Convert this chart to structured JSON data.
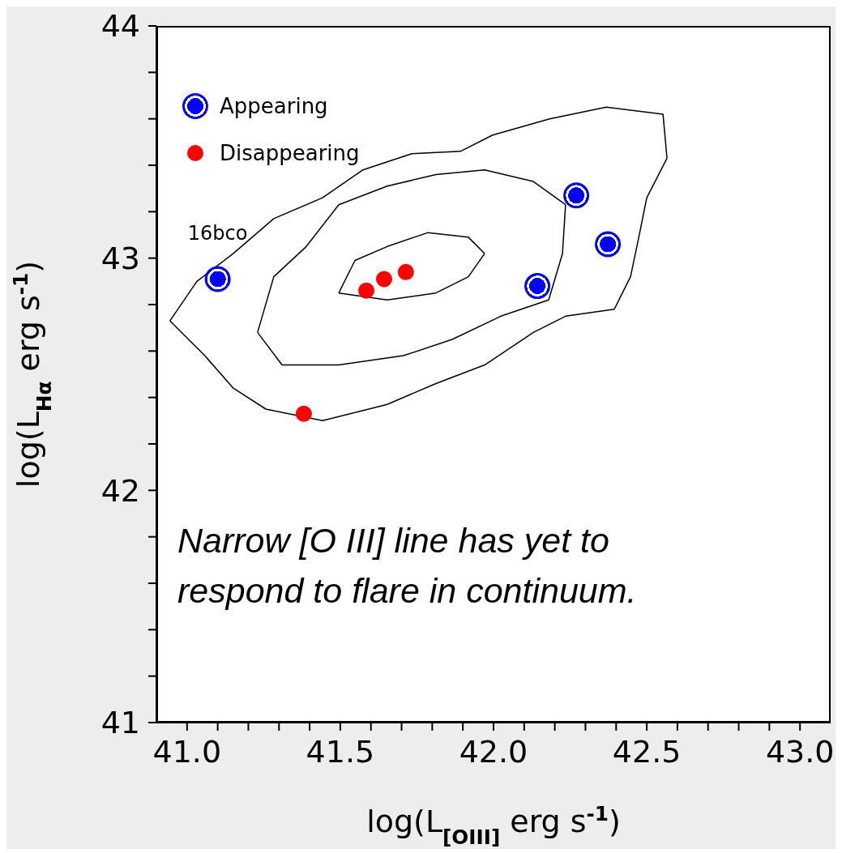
{
  "chart_data": {
    "type": "scatter",
    "xlabel": "log(L$_{[OIII]}$ erg s$^{-1}$)",
    "ylabel": "log(L$_{Hα}$ erg s$^{-1}$)",
    "xlim": [
      40.9,
      43.1
    ],
    "ylim": [
      41,
      44
    ],
    "xticks": [
      {
        "value": 41,
        "label": "41.0"
      },
      {
        "value": 41.1,
        "label": null
      },
      {
        "value": 41.2,
        "label": null
      },
      {
        "value": 41.3,
        "label": null
      },
      {
        "value": 41.4,
        "label": null
      },
      {
        "value": 41.5,
        "label": "41.5"
      },
      {
        "value": 41.6,
        "label": null
      },
      {
        "value": 41.7,
        "label": null
      },
      {
        "value": 41.8,
        "label": null
      },
      {
        "value": 41.9,
        "label": null
      },
      {
        "value": 42,
        "label": "42.0"
      },
      {
        "value": 42.1,
        "label": null
      },
      {
        "value": 42.2,
        "label": null
      },
      {
        "value": 42.3,
        "label": null
      },
      {
        "value": 42.4,
        "label": null
      },
      {
        "value": 42.5,
        "label": "42.5"
      },
      {
        "value": 42.6,
        "label": null
      },
      {
        "value": 42.7,
        "label": null
      },
      {
        "value": 42.8,
        "label": null
      },
      {
        "value": 42.9,
        "label": null
      },
      {
        "value": 43,
        "label": "43.0"
      }
    ],
    "yticks": [
      41,
      {
        "value": 41.2,
        "label": null
      },
      {
        "value": 41.4,
        "label": null
      },
      {
        "value": 41.6,
        "label": null
      },
      {
        "value": 41.8,
        "label": null
      },
      42,
      {
        "value": 42.2,
        "label": null
      },
      {
        "value": 42.4,
        "label": null
      },
      {
        "value": 42.6,
        "label": null
      },
      {
        "value": 42.8,
        "label": null
      },
      43,
      {
        "value": 43.2,
        "label": null
      },
      {
        "value": 43.4,
        "label": null
      },
      {
        "value": 43.6,
        "label": null
      },
      {
        "value": 43.8,
        "label": null
      },
      44
    ],
    "grid": false,
    "legend": "top left",
    "marker": "circle",
    "annotations": [
      {
        "text": "16bco",
        "x": 41.1,
        "y": 42.91
      },
      "Narrow [O III] line has yet to respond to flare in continuum."
    ],
    "series": [
      {
        "type": "line",
        "color": "#000000",
        "marker": "none",
        "line_style": "solid",
        "x": [
          40.944,
          41.032,
          41.151,
          41.283,
          41.442,
          41.574,
          41.733,
          41.892,
          41.997,
          42.183,
          42.368,
          42.553,
          42.566
        ],
        "values": [
          42.73,
          42.9,
          43.02,
          43.17,
          43.26,
          43.38,
          43.45,
          43.46,
          43.53,
          43.6,
          43.65,
          43.62,
          43.43
        ]
      },
      {
        "type": "line",
        "color": "#000000",
        "marker": "none",
        "line_style": "solid",
        "x": [
          40.944,
          41.058,
          41.151,
          41.257,
          41.442,
          41.653,
          41.812,
          41.971,
          42.13,
          42.235,
          42.394,
          42.447,
          42.474,
          42.5,
          42.566
        ],
        "values": [
          42.73,
          42.58,
          42.44,
          42.35,
          42.3,
          42.37,
          42.46,
          42.54,
          42.68,
          42.75,
          42.78,
          42.92,
          43.09,
          43.26,
          43.43
        ]
      },
      {
        "type": "line",
        "color": "#000000",
        "marker": "none",
        "line_style": "solid",
        "x": [
          41.23,
          41.283,
          41.389,
          41.495,
          41.653,
          41.812,
          41.971,
          42.13,
          42.235
        ],
        "values": [
          42.68,
          42.92,
          43.05,
          43.23,
          43.31,
          43.36,
          43.38,
          43.33,
          43.23
        ]
      },
      {
        "type": "line",
        "color": "#000000",
        "marker": "none",
        "line_style": "solid",
        "x": [
          41.23,
          41.31,
          41.495,
          41.706,
          41.865,
          42.024,
          42.18,
          42.225,
          42.235
        ],
        "values": [
          42.68,
          42.54,
          42.54,
          42.58,
          42.65,
          42.75,
          42.82,
          43.02,
          43.23
        ]
      },
      {
        "type": "line",
        "color": "#000000",
        "marker": "none",
        "line_style": "solid",
        "x": [
          41.495,
          41.548,
          41.653,
          41.786,
          41.918,
          41.971
        ],
        "values": [
          42.85,
          42.99,
          43.05,
          43.11,
          43.09,
          43.02
        ]
      },
      {
        "type": "line",
        "color": "#000000",
        "marker": "none",
        "line_style": "solid",
        "x": [
          41.495,
          41.653,
          41.812,
          41.918,
          41.971
        ],
        "values": [
          42.85,
          42.82,
          42.85,
          42.92,
          43.02
        ]
      },
      {
        "name": "Appearing",
        "color": "#0000ff",
        "x": [
          41.1,
          42.27,
          42.373,
          42.143
        ],
        "values": [
          42.91,
          43.27,
          43.06,
          42.88
        ]
      },
      {
        "name": "Disappearing",
        "color": "#ff0000",
        "x": [
          41.585,
          41.643,
          41.714,
          41.381
        ],
        "values": [
          42.86,
          42.91,
          42.94,
          42.33
        ]
      }
    ]
  }
}
